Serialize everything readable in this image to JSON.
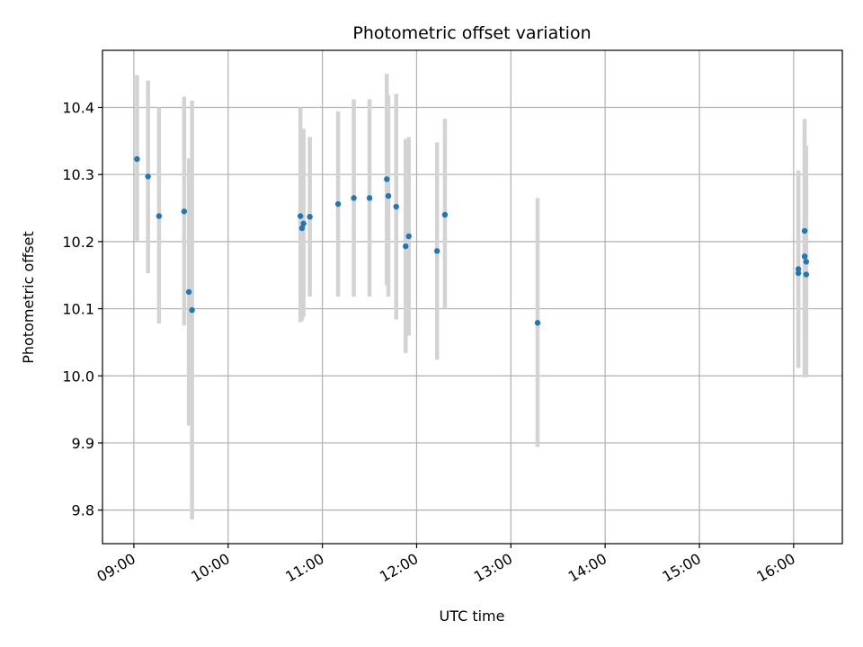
{
  "chart_data": {
    "type": "scatter",
    "title": "Photometric offset variation",
    "xlabel": "UTC time",
    "ylabel": "Photometric offset",
    "xlim": [
      "08:40",
      "16:31"
    ],
    "ylim": [
      9.75,
      10.485
    ],
    "x_ticks": [
      "09:00",
      "10:00",
      "11:00",
      "12:00",
      "13:00",
      "14:00",
      "15:00",
      "16:00"
    ],
    "y_ticks": [
      9.8,
      9.9,
      10.0,
      10.1,
      10.2,
      10.3,
      10.4
    ],
    "grid": true,
    "legend": "none",
    "errorbar_color": "#d3d3d3",
    "point_color": "#1f77b4",
    "series": [
      {
        "points": [
          {
            "x": "09:02",
            "y": 10.323,
            "yerr": [
              10.2,
              10.448
            ]
          },
          {
            "x": "09:09",
            "y": 10.297,
            "yerr": [
              10.153,
              10.44
            ]
          },
          {
            "x": "09:16",
            "y": 10.238,
            "yerr": [
              10.078,
              10.4
            ]
          },
          {
            "x": "09:32",
            "y": 10.245,
            "yerr": [
              10.075,
              10.416
            ]
          },
          {
            "x": "09:35",
            "y": 10.125,
            "yerr": [
              9.926,
              10.324
            ]
          },
          {
            "x": "09:37",
            "y": 10.098,
            "yerr": [
              9.786,
              10.41
            ]
          },
          {
            "x": "10:46",
            "y": 10.238,
            "yerr": [
              10.08,
              10.4
            ]
          },
          {
            "x": "10:47",
            "y": 10.22,
            "yerr": [
              10.082,
              10.36
            ]
          },
          {
            "x": "10:48",
            "y": 10.227,
            "yerr": [
              10.088,
              10.368
            ]
          },
          {
            "x": "10:52",
            "y": 10.237,
            "yerr": [
              10.118,
              10.356
            ]
          },
          {
            "x": "11:10",
            "y": 10.256,
            "yerr": [
              10.118,
              10.394
            ]
          },
          {
            "x": "11:20",
            "y": 10.265,
            "yerr": [
              10.118,
              10.412
            ]
          },
          {
            "x": "11:30",
            "y": 10.265,
            "yerr": [
              10.118,
              10.412
            ]
          },
          {
            "x": "11:41",
            "y": 10.293,
            "yerr": [
              10.135,
              10.45
            ]
          },
          {
            "x": "11:42",
            "y": 10.268,
            "yerr": [
              10.118,
              10.418
            ]
          },
          {
            "x": "11:47",
            "y": 10.252,
            "yerr": [
              10.084,
              10.42
            ]
          },
          {
            "x": "11:53",
            "y": 10.193,
            "yerr": [
              10.034,
              10.353
            ]
          },
          {
            "x": "11:55",
            "y": 10.208,
            "yerr": [
              10.06,
              10.356
            ]
          },
          {
            "x": "12:13",
            "y": 10.186,
            "yerr": [
              10.024,
              10.348
            ]
          },
          {
            "x": "12:18",
            "y": 10.24,
            "yerr": [
              10.1,
              10.383
            ]
          },
          {
            "x": "13:17",
            "y": 10.079,
            "yerr": [
              9.894,
              10.265
            ]
          },
          {
            "x": "16:03",
            "y": 10.159,
            "yerr": [
              10.012,
              10.306
            ]
          },
          {
            "x": "16:03",
            "y": 10.153,
            "yerr": [
              10.012,
              10.3
            ]
          },
          {
            "x": "16:07",
            "y": 10.216,
            "yerr": [
              10.05,
              10.383
            ]
          },
          {
            "x": "16:07",
            "y": 10.178,
            "yerr": [
              9.998,
              10.352
            ]
          },
          {
            "x": "16:08",
            "y": 10.17,
            "yerr": [
              9.998,
              10.342
            ]
          },
          {
            "x": "16:08",
            "y": 10.151,
            "yerr": [
              9.998,
              10.305
            ]
          }
        ]
      }
    ]
  }
}
